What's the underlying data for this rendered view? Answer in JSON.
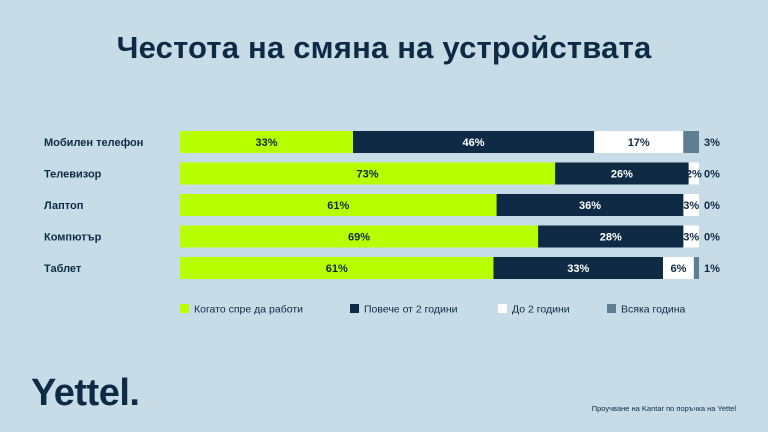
{
  "title": "Честота на смяна на устройствата",
  "logo": "Yettel.",
  "source": "Проучване на Kantar по поръчка на Yettel",
  "colors": {
    "background": "#c7dce6",
    "text": "#0f2a45",
    "series": [
      "#b8ff00",
      "#0f2a45",
      "#ffffff",
      "#5e7f92"
    ]
  },
  "chart_data": {
    "type": "bar",
    "orientation": "horizontal",
    "stacked": true,
    "categories": [
      "Мобилен телефон",
      "Телевизор",
      "Лаптоп",
      "Компютър",
      "Таблет"
    ],
    "series": [
      {
        "name": "Когато спре да работи",
        "values": [
          33,
          73,
          61,
          69,
          61
        ],
        "labels": [
          "33%",
          "73%",
          "61%",
          "69%",
          "61%"
        ]
      },
      {
        "name": "Повече от 2 години",
        "values": [
          46,
          26,
          36,
          28,
          33
        ],
        "labels": [
          "46%",
          "26%",
          "36%",
          "28%",
          "33%"
        ]
      },
      {
        "name": "До 2 години",
        "values": [
          17,
          2,
          3,
          3,
          6
        ],
        "labels": [
          "17%",
          "2%",
          "3%",
          "3%",
          "6%"
        ]
      },
      {
        "name": "Всяка година",
        "values": [
          3,
          0,
          0,
          0,
          1
        ],
        "labels": [
          "3%",
          "0%",
          "0%",
          "0%",
          "1%"
        ]
      }
    ],
    "legend_position": "bottom",
    "grid": false
  }
}
